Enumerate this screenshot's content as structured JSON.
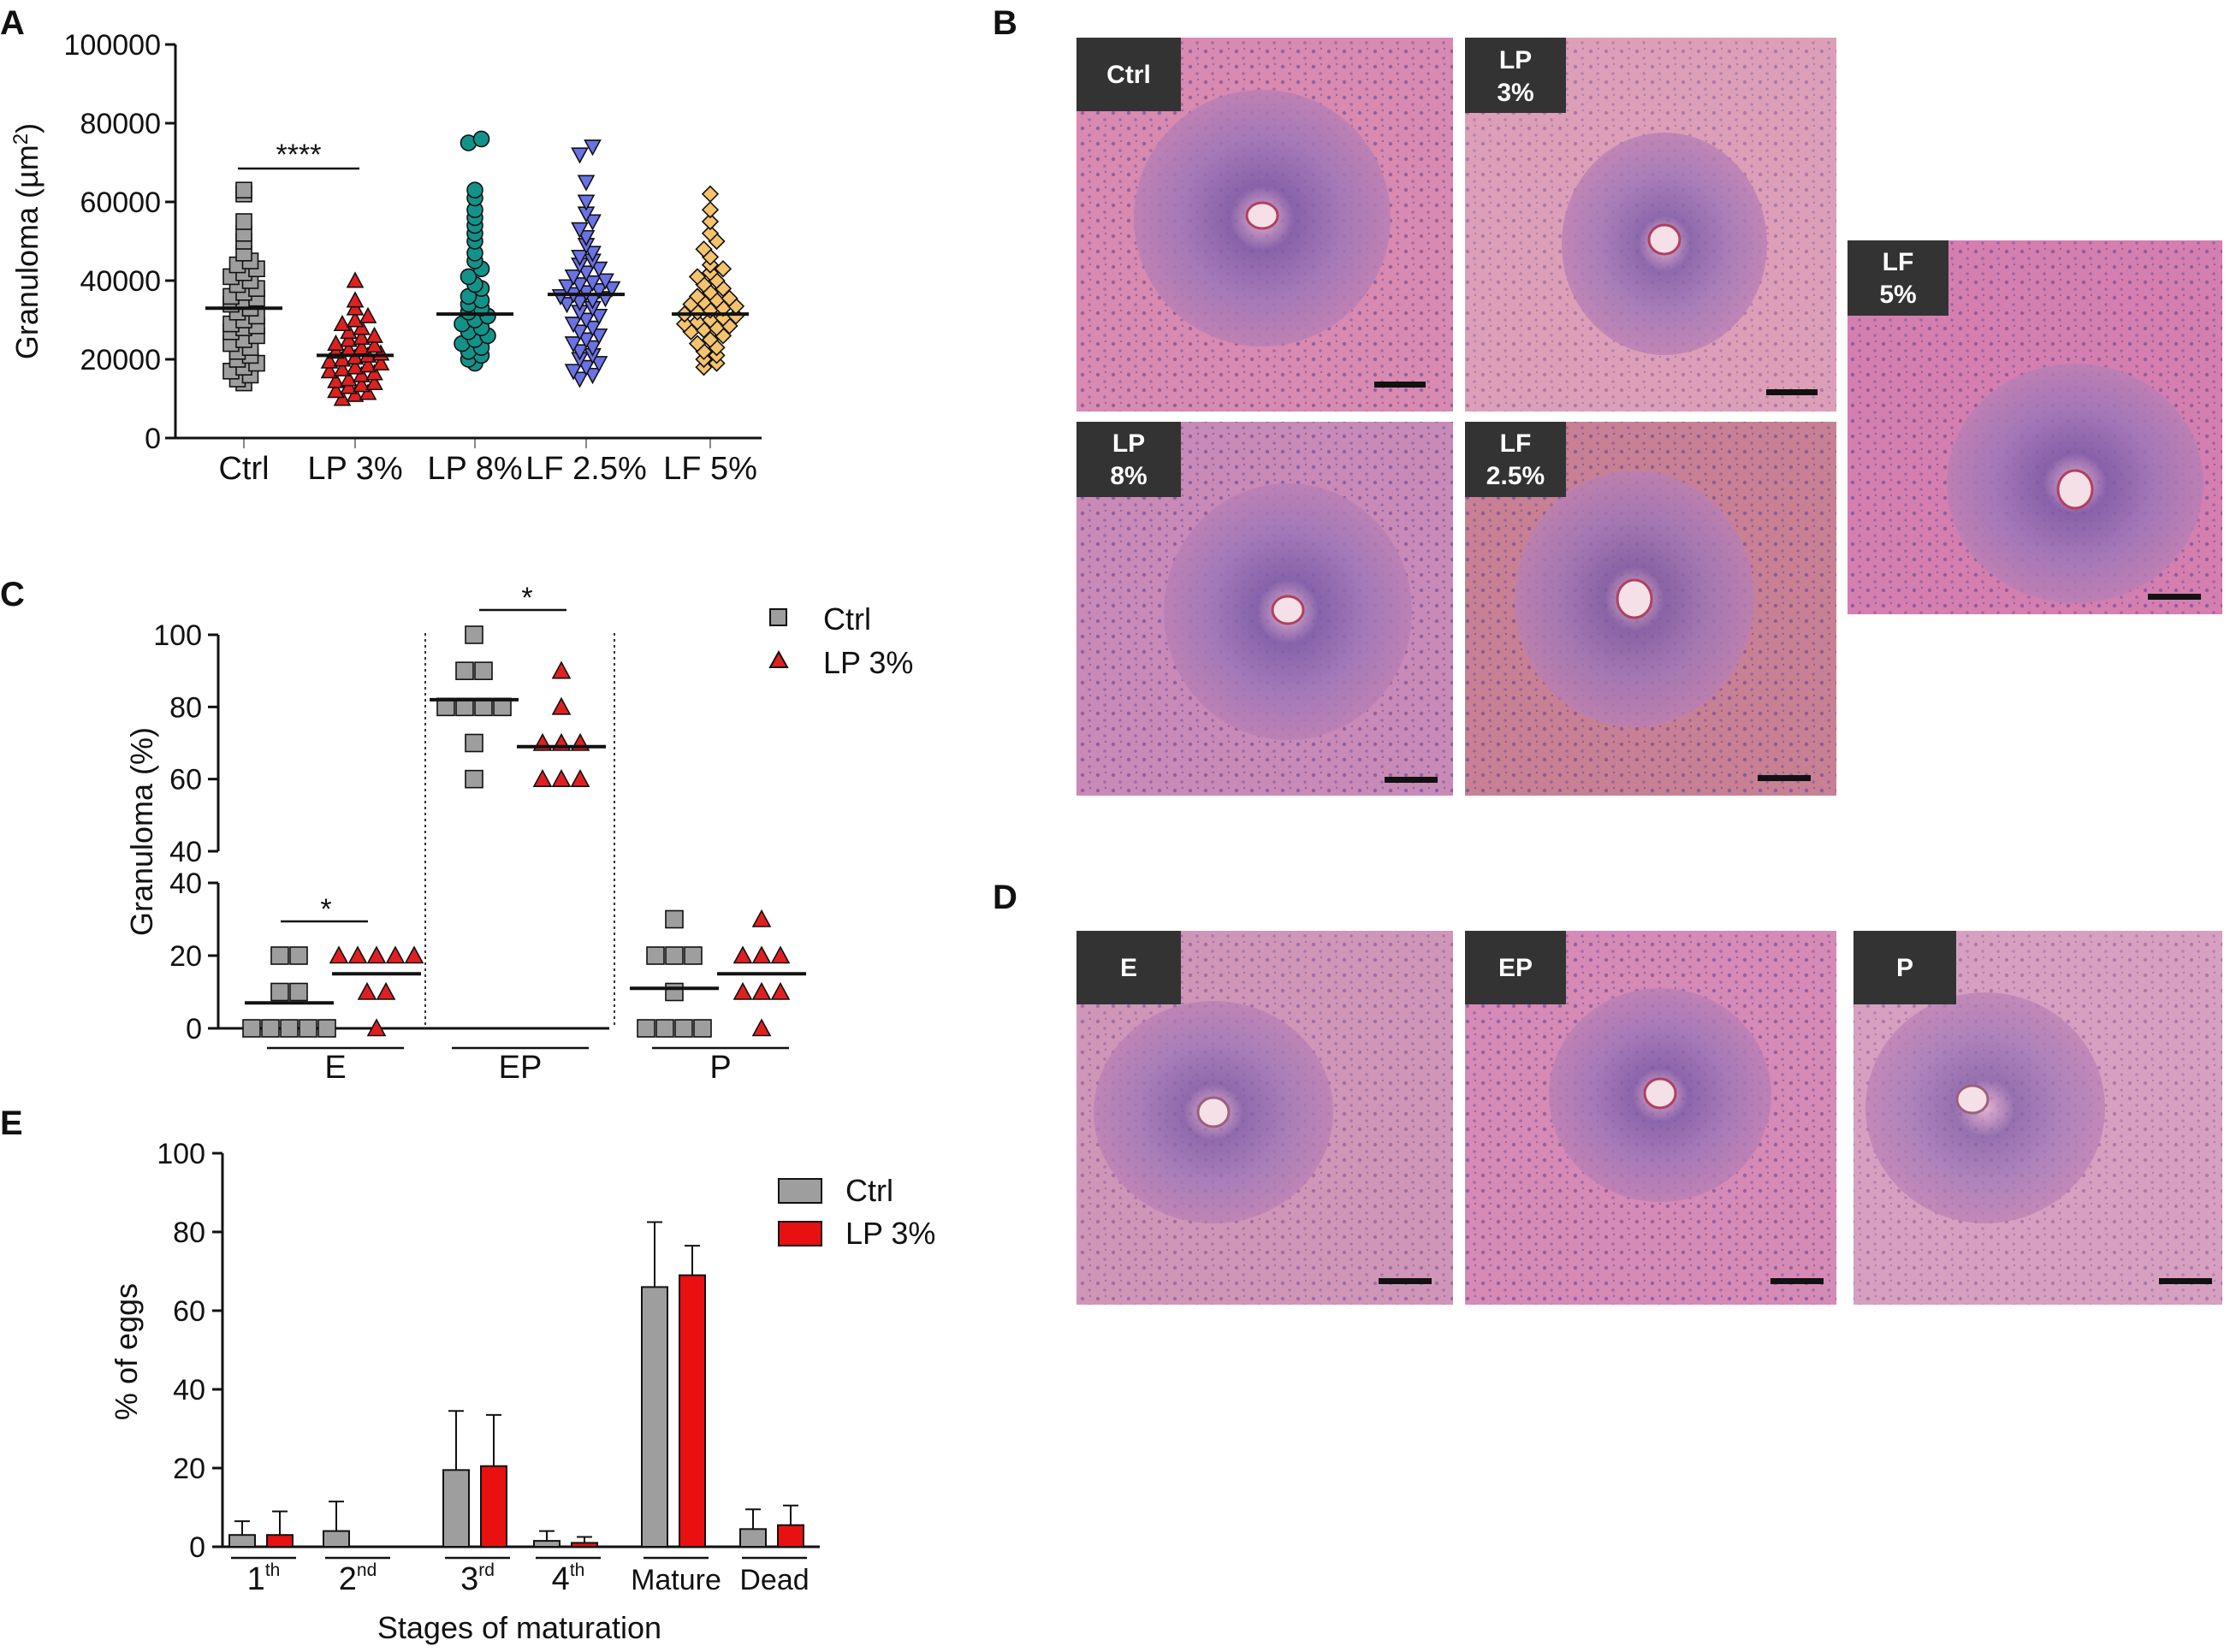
{
  "panel_labels": [
    "A",
    "B",
    "C",
    "D",
    "E"
  ],
  "colors": {
    "ctrl": "#9e9e9e",
    "lp3": "#e02020",
    "lp8": "#12938a",
    "lf25": "#6a72e6",
    "lf5": "#f5c36c",
    "he_pink": "#d88ab0",
    "he_purple": "#5a3f8e",
    "tag_bg": "#333333"
  },
  "panel_a": {
    "ylabel": "Granuloma (µm²)",
    "sig_label": "****",
    "micrographs": [
      {
        "label_lines": [
          "Ctrl"
        ]
      },
      {
        "label_lines": [
          "LP",
          "3%"
        ]
      },
      {
        "label_lines": [
          "LF",
          "5%"
        ]
      },
      {
        "label_lines": [
          "LP",
          "8%"
        ]
      },
      {
        "label_lines": [
          "LF",
          "2.5%"
        ]
      }
    ]
  },
  "panel_c": {
    "ylabel": "Granuloma (%)",
    "sig_labels": [
      "*",
      "*"
    ],
    "legend": [
      "Ctrl",
      "LP 3%"
    ]
  },
  "panel_d": {
    "micrographs": [
      {
        "label_lines": [
          "E"
        ]
      },
      {
        "label_lines": [
          "EP"
        ]
      },
      {
        "label_lines": [
          "P"
        ]
      }
    ]
  },
  "panel_e": {
    "ylabel": "% of eggs",
    "xlabel": "Stages of maturation",
    "legend": [
      "Ctrl",
      "LP 3%"
    ]
  },
  "chart_data": [
    {
      "type": "scatter",
      "panel": "A",
      "ylabel": "Granuloma (µm²)",
      "ylim": [
        0,
        100000
      ],
      "yticks": [
        "0",
        "20000",
        "40000",
        "60000",
        "80000",
        "100000"
      ],
      "categories": [
        "Ctrl",
        "LP 3%",
        "LP 8%",
        "LF 2.5%",
        "LF 5%"
      ],
      "markers": [
        "square",
        "triangle-up",
        "circle",
        "triangle-down",
        "diamond"
      ],
      "means": [
        33000,
        21000,
        31500,
        36500,
        31500
      ],
      "series": [
        {
          "name": "Ctrl",
          "values": [
            63000,
            62000,
            55000,
            52000,
            50000,
            47000,
            45000,
            44000,
            43000,
            42000,
            41000,
            40000,
            39000,
            38000,
            37000,
            36000,
            35500,
            35000,
            34000,
            33000,
            32000,
            31000,
            30000,
            29000,
            28500,
            28000,
            27000,
            26000,
            25000,
            24000,
            23000,
            22000,
            21000,
            20000,
            19000,
            18000,
            17000,
            16000,
            15000,
            14000
          ]
        },
        {
          "name": "LP 3%",
          "values": [
            40000,
            35000,
            33000,
            31000,
            30000,
            29000,
            28000,
            27000,
            26000,
            25500,
            25000,
            24000,
            23500,
            23000,
            22500,
            22000,
            21500,
            21000,
            20500,
            20000,
            19500,
            19000,
            18500,
            18000,
            17500,
            17000,
            16500,
            16000,
            15000,
            14500,
            14000,
            13500,
            13000,
            12000,
            11500,
            11000,
            10000
          ]
        },
        {
          "name": "LP 8%",
          "values": [
            76000,
            75000,
            63000,
            61000,
            58000,
            56000,
            54000,
            52000,
            50000,
            47000,
            45000,
            43000,
            41000,
            39000,
            38000,
            36000,
            35000,
            34000,
            33000,
            32000,
            31000,
            30000,
            29000,
            28000,
            27000,
            26000,
            25000,
            24000,
            23000,
            22000,
            21000,
            20000,
            19000
          ]
        },
        {
          "name": "LF 2.5%",
          "values": [
            74000,
            72000,
            65000,
            60000,
            57000,
            55000,
            53000,
            51000,
            49000,
            47000,
            46000,
            45000,
            44000,
            43000,
            42000,
            41000,
            40000,
            39500,
            39000,
            38500,
            38000,
            37500,
            37000,
            36500,
            36000,
            35500,
            35000,
            34500,
            34000,
            33000,
            32000,
            31000,
            30000,
            29000,
            28000,
            27000,
            26000,
            25000,
            24000,
            23000,
            22000,
            21000,
            20000,
            19000,
            18000,
            17000,
            16000,
            15000
          ]
        },
        {
          "name": "LF 5%",
          "values": [
            62000,
            58000,
            55000,
            52000,
            50000,
            48000,
            46000,
            44000,
            43000,
            42000,
            41000,
            40000,
            39000,
            38000,
            37000,
            36000,
            35500,
            35000,
            34500,
            34000,
            33500,
            33000,
            32500,
            32000,
            31500,
            31000,
            30500,
            30000,
            29500,
            29000,
            28500,
            28000,
            27500,
            27000,
            26000,
            25000,
            24000,
            23000,
            22000,
            21000,
            20000,
            19000,
            18000
          ]
        }
      ],
      "significance": {
        "between": [
          "Ctrl",
          "LP 3%"
        ],
        "label": "****"
      }
    },
    {
      "type": "scatter",
      "panel": "C",
      "ylabel": "Granuloma (%)",
      "categories": [
        "E",
        "EP",
        "P"
      ],
      "legend": [
        "Ctrl",
        "LP 3%"
      ],
      "yticks_upper": [
        "40",
        "60",
        "80",
        "100"
      ],
      "yticks_lower": [
        "0",
        "20",
        "40"
      ],
      "ylim_upper": [
        40,
        100
      ],
      "ylim_lower": [
        0,
        40
      ],
      "axis_break": true,
      "series": [
        {
          "name": "Ctrl",
          "marker": "square",
          "groups": {
            "E": {
              "values": [
                20,
                20,
                10,
                10,
                0,
                0,
                0,
                0,
                0
              ],
              "mean": 7
            },
            "EP": {
              "values": [
                100,
                90,
                90,
                80,
                80,
                80,
                80,
                70,
                60
              ],
              "mean": 82
            },
            "P": {
              "values": [
                30,
                20,
                20,
                20,
                10,
                0,
                0,
                0,
                0
              ],
              "mean": 11
            }
          }
        },
        {
          "name": "LP 3%",
          "marker": "triangle-up",
          "groups": {
            "E": {
              "values": [
                20,
                20,
                20,
                20,
                20,
                10,
                10,
                0
              ],
              "mean": 15
            },
            "EP": {
              "values": [
                90,
                80,
                70,
                70,
                70,
                60,
                60,
                60
              ],
              "mean": 69
            },
            "P": {
              "values": [
                30,
                20,
                20,
                20,
                10,
                10,
                10,
                0
              ],
              "mean": 15
            }
          }
        }
      ],
      "significance": [
        {
          "group": "E",
          "label": "*"
        },
        {
          "group": "EP",
          "label": "*"
        }
      ]
    },
    {
      "type": "bar",
      "panel": "E",
      "ylabel": "% of eggs",
      "xlabel": "Stages of maturation",
      "ylim": [
        0,
        100
      ],
      "yticks": [
        "0",
        "20",
        "40",
        "60",
        "80",
        "100"
      ],
      "categories": [
        {
          "base": "1",
          "sup": "th"
        },
        {
          "base": "2",
          "sup": "nd"
        },
        {
          "base": "3",
          "sup": "rd"
        },
        {
          "base": "4",
          "sup": "th"
        },
        {
          "base": "Mature",
          "sup": ""
        },
        {
          "base": "Dead",
          "sup": ""
        }
      ],
      "series": [
        {
          "name": "Ctrl",
          "values": [
            3,
            4,
            19.5,
            1.5,
            66,
            4.5
          ],
          "errors": [
            3.5,
            7.5,
            15,
            2.5,
            16.5,
            5
          ]
        },
        {
          "name": "LP 3%",
          "values": [
            3,
            0,
            20.5,
            1,
            69,
            5.5
          ],
          "errors": [
            6,
            0,
            13,
            1.5,
            7.5,
            5
          ]
        }
      ]
    }
  ]
}
